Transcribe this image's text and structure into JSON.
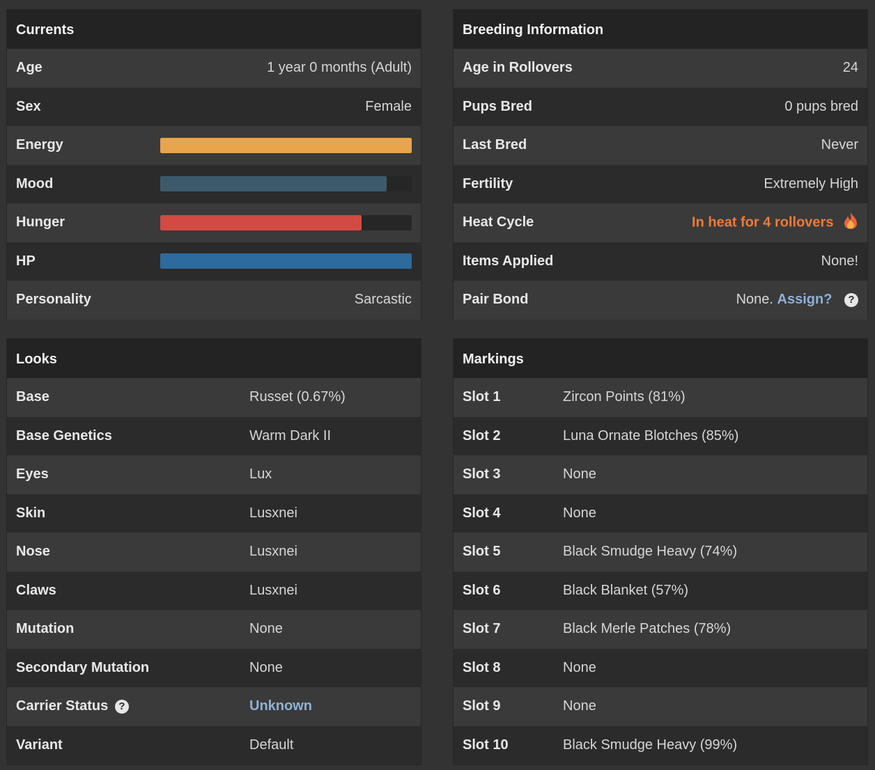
{
  "currents": {
    "title": "Currents",
    "age_label": "Age",
    "age_value": "1 year 0 months (Adult)",
    "sex_label": "Sex",
    "sex_value": "Female",
    "energy_label": "Energy",
    "mood_label": "Mood",
    "hunger_label": "Hunger",
    "hp_label": "HP",
    "personality_label": "Personality",
    "personality_value": "Sarcastic",
    "bars": {
      "energy": {
        "fraction": 1.0,
        "color": "#e8a54b"
      },
      "mood": {
        "fraction": 0.9,
        "color": "#3d5a6c"
      },
      "hunger": {
        "fraction": 0.8,
        "color": "#d24a44"
      },
      "hp": {
        "fraction": 1.0,
        "color": "#2d6a9d"
      }
    }
  },
  "breeding": {
    "title": "Breeding Information",
    "rows": [
      {
        "label": "Age in Rollovers",
        "value": "24"
      },
      {
        "label": "Pups Bred",
        "value": "0 pups bred"
      },
      {
        "label": "Last Bred",
        "value": "Never"
      },
      {
        "label": "Fertility",
        "value": "Extremely High"
      }
    ],
    "heat_label": "Heat Cycle",
    "heat_value": "In heat for 4 rollovers",
    "items_label": "Items Applied",
    "items_value": "None!",
    "pair_label": "Pair Bond",
    "pair_value": "None.",
    "pair_link": "Assign?"
  },
  "looks": {
    "title": "Looks",
    "rows": [
      {
        "label": "Base",
        "value": "Russet (0.67%)"
      },
      {
        "label": "Base Genetics",
        "value": "Warm Dark II"
      },
      {
        "label": "Eyes",
        "value": "Lux"
      },
      {
        "label": "Skin",
        "value": "Lusxnei"
      },
      {
        "label": "Nose",
        "value": "Lusxnei"
      },
      {
        "label": "Claws",
        "value": "Lusxnei"
      },
      {
        "label": "Mutation",
        "value": "None"
      },
      {
        "label": "Secondary Mutation",
        "value": "None"
      }
    ],
    "carrier_label": "Carrier Status",
    "carrier_value": "Unknown",
    "variant_label": "Variant",
    "variant_value": "Default"
  },
  "markings": {
    "title": "Markings",
    "rows": [
      {
        "label": "Slot 1",
        "value": "Zircon Points (81%)"
      },
      {
        "label": "Slot 2",
        "value": "Luna Ornate Blotches (85%)"
      },
      {
        "label": "Slot 3",
        "value": "None"
      },
      {
        "label": "Slot 4",
        "value": "None"
      },
      {
        "label": "Slot 5",
        "value": "Black Smudge Heavy (74%)"
      },
      {
        "label": "Slot 6",
        "value": "Black Blanket (57%)"
      },
      {
        "label": "Slot 7",
        "value": "Black Merle Patches (78%)"
      },
      {
        "label": "Slot 8",
        "value": "None"
      },
      {
        "label": "Slot 9",
        "value": "None"
      },
      {
        "label": "Slot 10",
        "value": "Black Smudge Heavy (99%)"
      }
    ]
  },
  "icons": {
    "help": "question-circle-icon",
    "heat": "flame-icon"
  }
}
